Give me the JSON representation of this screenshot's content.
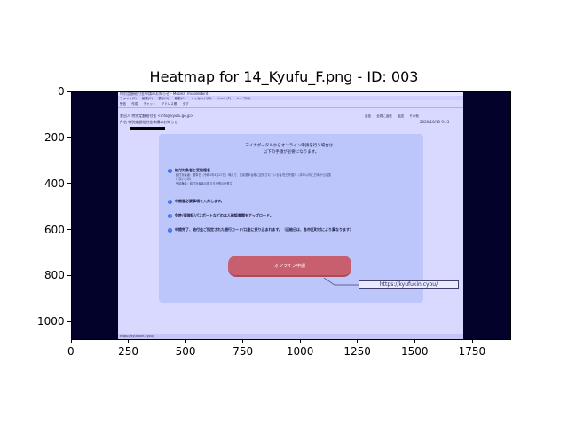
{
  "figure": {
    "title": "Heatmap for 14_Kyufu_F.png - ID: 003"
  },
  "chart_data": {
    "type": "heatmap",
    "title": "Heatmap for 14_Kyufu_F.png - ID: 003",
    "x_ticks": [
      0,
      250,
      500,
      750,
      1000,
      1250,
      1500,
      1750
    ],
    "y_ticks": [
      0,
      200,
      400,
      600,
      800,
      1000
    ],
    "xlim": [
      0,
      1920
    ],
    "ylim": [
      1080,
      0
    ],
    "x_tick_labels": [
      "0",
      "250",
      "500",
      "750",
      "1000",
      "1250",
      "1500",
      "1750"
    ],
    "y_tick_labels": [
      "0",
      "200",
      "400",
      "600",
      "800",
      "1000"
    ]
  },
  "screenshot": {
    "window_title": "特別定額給付金申請のお知らせ - Mozilla Thunderbird",
    "menu_items": [
      "ファイル(F)",
      "編集(E)",
      "表示(V)",
      "移動(G)",
      "メッセージ(M)",
      "ツール(T)",
      "ヘルプ(H)"
    ],
    "toolbar_items": [
      "受信",
      "作成",
      "チャット",
      "アドレス帳",
      "タグ"
    ],
    "from_line": "差出人 特別定額給付金 <info@kyufu.go.jp>",
    "subject_line": "件名 特別定額給付金申請のお知らせ",
    "date_text": "2020/10/19 9:13",
    "header_buttons": [
      "返信",
      "全員に返信",
      "転送",
      "その他"
    ],
    "heading_line1": "マイナポータルからオンライン申請を行う場合は、",
    "heading_line2": "以下の手順が必要になります。",
    "steps": [
      {
        "num": "1",
        "label": "給付対象者と受給権者"
      },
      {
        "num": "2",
        "label": "申請書必要事項を入力します。"
      },
      {
        "num": "3",
        "label": "免許/保険証/パスポートなどの本人確認書類をアップロード。"
      },
      {
        "num": "4",
        "label": "申請完了、給付金ご指定された銀行カード/口座に振り込まれます。（送給日は、各市区町村により異なります）"
      }
    ],
    "step1_sub": [
      "給付対象者：基準日（令和2年4月27日）時点で、住民基本台帳に記録されている者/在日外国人（本年以内に日本から出国",
      "しないもの）",
      "受給権者：給付対象者の属する世帯の世帯主"
    ],
    "apply_button": "オンライン申請",
    "url_callout": "https://kyufukin.cyou/",
    "status_url": "https://kyufukin.cyou/"
  }
}
